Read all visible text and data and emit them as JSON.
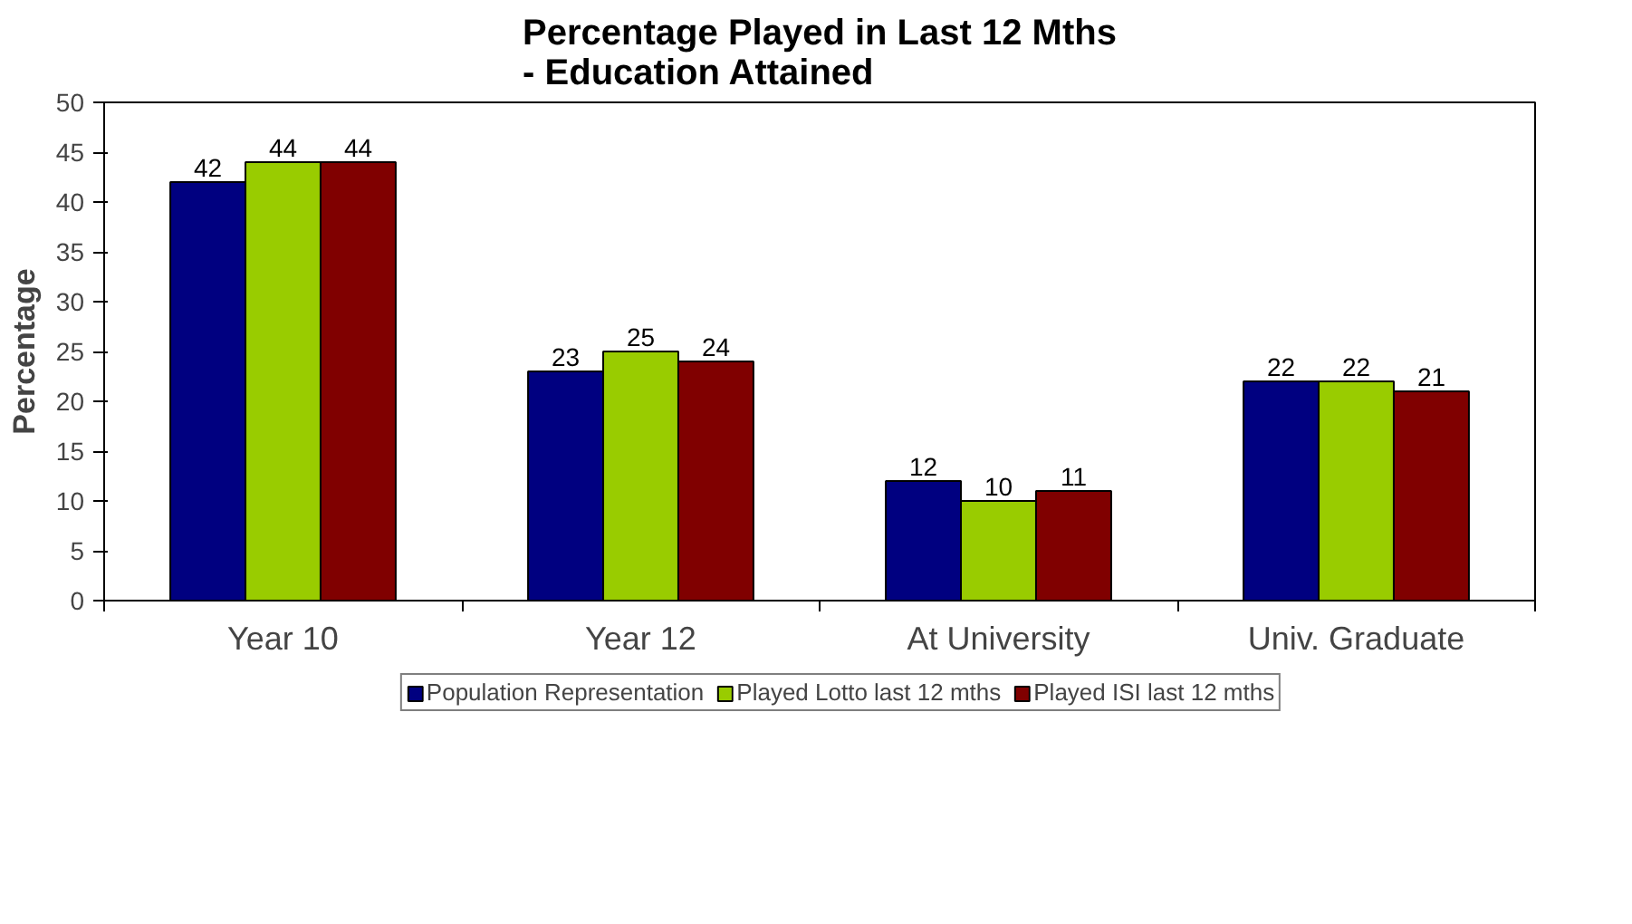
{
  "chart_data": {
    "type": "bar",
    "title": "Percentage Played in Last 12 Mths\n- Education Attained",
    "ylabel": "Percentage",
    "categories": [
      "Year 10",
      "Year 12",
      "At University",
      "Univ. Graduate"
    ],
    "series": [
      {
        "name": "Population Representation",
        "color": "#000080",
        "values": [
          42,
          23,
          12,
          22
        ]
      },
      {
        "name": "Played Lotto last 12 mths",
        "color": "#99cc00",
        "values": [
          44,
          25,
          10,
          22
        ]
      },
      {
        "name": "Played ISI last 12 mths",
        "color": "#800000",
        "values": [
          44,
          24,
          11,
          21
        ]
      }
    ],
    "ylim": [
      0,
      50
    ],
    "yticks": [
      0,
      5,
      10,
      15,
      20,
      25,
      30,
      35,
      40,
      45,
      50
    ],
    "data_labels": true,
    "legend": "bottom",
    "grid": false
  }
}
